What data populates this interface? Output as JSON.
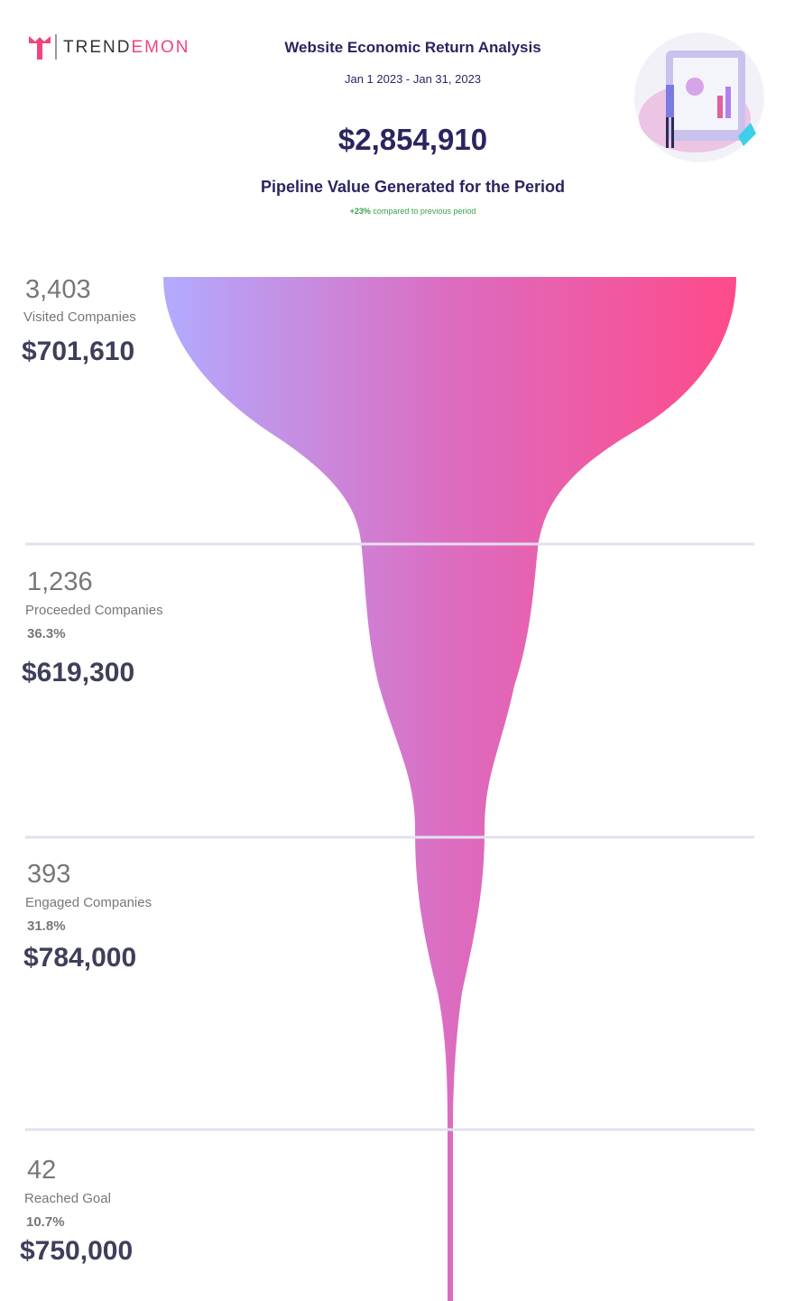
{
  "header": {
    "logo_left": "TREND",
    "logo_right": "EMON",
    "title": "Website Economic Return Analysis",
    "date_range": "Jan 1 2023 - Jan 31, 2023",
    "total": "$2,854,910",
    "total_label": "Pipeline Value Generated for the Period",
    "change": "+23%",
    "change_note": "compared to previous period"
  },
  "stages": [
    {
      "count": "3,403",
      "label": "Visited Companies",
      "value": "$701,610"
    },
    {
      "count": "1,236",
      "label": "Proceeded Companies",
      "rate": "36.3%",
      "value": "$619,300"
    },
    {
      "count": "393",
      "label": "Engaged Companies",
      "rate": "31.8%",
      "value": "$784,000"
    },
    {
      "count": "42",
      "label": "Reached Goal",
      "rate": "10.7%",
      "value": "$750,000"
    }
  ]
}
